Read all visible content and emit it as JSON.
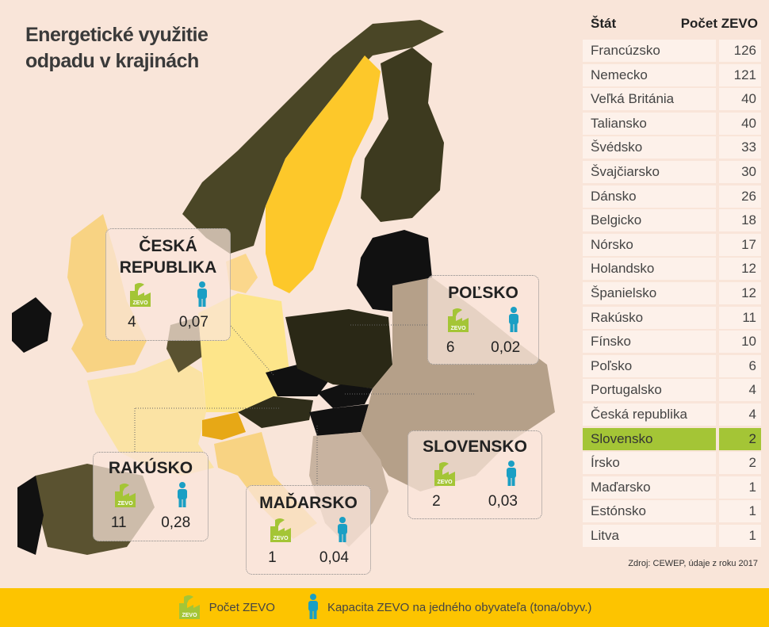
{
  "title": {
    "line1": "Energetické využitie",
    "line2": "odpadu v krajinách"
  },
  "table": {
    "headers": [
      "Štát",
      "Počet ZEVO"
    ],
    "rows": [
      {
        "name": "Francúzsko",
        "value": "126"
      },
      {
        "name": "Nemecko",
        "value": "121"
      },
      {
        "name": "Veľká Británia",
        "value": "40"
      },
      {
        "name": "Taliansko",
        "value": "40"
      },
      {
        "name": "Švédsko",
        "value": "33"
      },
      {
        "name": "Švajčiarsko",
        "value": "30"
      },
      {
        "name": "Dánsko",
        "value": "26"
      },
      {
        "name": "Belgicko",
        "value": "18"
      },
      {
        "name": "Nórsko",
        "value": "17"
      },
      {
        "name": "Holandsko",
        "value": "12"
      },
      {
        "name": "Španielsko",
        "value": "12"
      },
      {
        "name": "Rakúsko",
        "value": "11"
      },
      {
        "name": "Fínsko",
        "value": "10"
      },
      {
        "name": "Poľsko",
        "value": "6"
      },
      {
        "name": "Portugalsko",
        "value": "4"
      },
      {
        "name": "Česká republika",
        "value": "4"
      },
      {
        "name": "Slovensko",
        "value": "2",
        "highlight": true
      },
      {
        "name": "Írsko",
        "value": "2"
      },
      {
        "name": "Maďarsko",
        "value": "1"
      },
      {
        "name": "Estónsko",
        "value": "1"
      },
      {
        "name": "Litva",
        "value": "1"
      }
    ]
  },
  "source": "Zdroj: CEWEP, údaje z roku 2017",
  "callouts": {
    "cz": {
      "name1": "ČESKÁ",
      "name2": "REPUBLIKA",
      "count": "4",
      "capacity": "0,07"
    },
    "pl": {
      "name": "POĽSKO",
      "count": "6",
      "capacity": "0,02"
    },
    "sk": {
      "name": "SLOVENSKO",
      "count": "2",
      "capacity": "0,03"
    },
    "hu": {
      "name": "MAĎARSKO",
      "count": "1",
      "capacity": "0,04"
    },
    "at": {
      "name": "RAKÚSKO",
      "count": "11",
      "capacity": "0,28"
    }
  },
  "icon_label": "ZEVO",
  "legend": {
    "plant": "Počet ZEVO",
    "person": "Kapacita ZEVO na jedného obyvateľa (tona/obyv.)"
  },
  "colors": {
    "background": "#f9e5d9",
    "highlight": "#a4c536",
    "legend_bar": "#fdc400",
    "plant_icon": "#a4c536",
    "person_icon": "#1a9fc4"
  }
}
